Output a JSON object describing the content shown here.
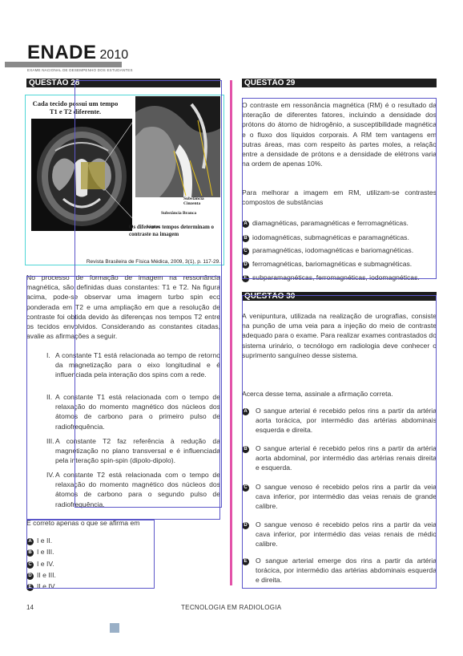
{
  "header": {
    "brand": "ENADE",
    "year": "2010",
    "subtitle": "EXAME NACIONAL DE DESEMPENHO DOS ESTUDANTES"
  },
  "q28": {
    "title": "QUESTÃO 28",
    "figure": {
      "caption_top": "Cada tecido possui um tempo T1 e T2 diferente.",
      "label_cinzenta": "Substância Cinzenta",
      "label_branca": "Substância Branca",
      "label_liquor": "Líquor",
      "caption_bottom": "Os diferentes tempos determinam o contraste na imagem",
      "source": "Revista Brasileira de Física Médica, 2009, 3(1), p. 117-29."
    },
    "intro": "No processo de formação de imagem na ressonância magnética, são definidas duas constantes: T1 e T2. Na figura acima, pode-se observar uma imagem turbo spin eco ponderada em T2 e uma ampliação em que a resolução de contraste foi obtida devido às diferenças nos tempos T2 entre os tecidos envolvidos. Considerando as constantes citadas, avalie as afirmações a seguir.",
    "items": [
      {
        "num": "I.",
        "text": "A constante T1 está relacionada ao tempo de retorno da magnetização para o eixo longitudinal e é influenciada pela interação dos spins com a rede."
      },
      {
        "num": "II.",
        "text": "A constante T1 está relacionada com o tempo de relaxação do momento magnético dos núcleos dos átomos de carbono para o primeiro pulso de radiofrequência."
      },
      {
        "num": "III.",
        "text": "A constante T2 faz referência à redução da magnetização no plano transversal e é influenciada pela interação spin-spin (dipolo-dipolo)."
      },
      {
        "num": "IV.",
        "text": "A constante T2 está relacionada com o tempo de relaxação do momento magnético dos núcleos dos átomos de carbono para o segundo pulso de radiofrequência."
      }
    ],
    "question": "É correto apenas o que se afirma em",
    "options": [
      {
        "letter": "A",
        "text": "I e II."
      },
      {
        "letter": "B",
        "text": "I e III."
      },
      {
        "letter": "C",
        "text": "I e IV."
      },
      {
        "letter": "D",
        "text": "II e III."
      },
      {
        "letter": "E",
        "text": "II e IV."
      }
    ]
  },
  "q29": {
    "title": "QUESTÃO 29",
    "intro": "O contraste em ressonância magnética (RM) é o resultado da interação de diferentes fatores, incluindo a densidade dos prótons do átomo de hidrogênio, a susceptibilidade magnética e o fluxo dos líquidos corporais. A RM tem vantagens em outras áreas, mas com respeito às partes moles, a relação entre a densidade de prótons e a densidade de elétrons varia na ordem de apenas 10%.",
    "question": "Para melhorar a imagem em RM, utilizam-se contrastes compostos de substâncias",
    "options": [
      {
        "letter": "A",
        "text": "diamagnéticas, paramagnéticas e ferromagnéticas."
      },
      {
        "letter": "B",
        "text": "iodomagnéticas, submagnéticas e paramagnéticas."
      },
      {
        "letter": "C",
        "text": "paramagnéticas, iodomagnéticas e bariomagnéticas."
      },
      {
        "letter": "D",
        "text": "ferromagnéticas, bariomagnéticas e submagnéticas."
      },
      {
        "letter": "E",
        "text": "subparamagnéticas, ferromagnéticas, iodomagnéticas."
      }
    ]
  },
  "q30": {
    "title": "QUESTÃO 30",
    "intro": "A venipuntura, utilizada na realização de urografias, consiste na punção de uma veia para a injeção do meio de contraste adequado para o exame. Para realizar exames contrastados do sistema urinário, o tecnólogo em radiologia deve conhecer o suprimento sanguíneo desse sistema.",
    "question": "Acerca desse tema, assinale a afirmação correta.",
    "options": [
      {
        "letter": "A",
        "text": "O sangue arterial é recebido pelos rins a partir da artéria aorta torácica, por intermédio das artérias abdominais esquerda e direita."
      },
      {
        "letter": "B",
        "text": "O sangue arterial é recebido pelos rins a partir da artéria aorta abdominal, por intermédio das artérias renais direita e esquerda."
      },
      {
        "letter": "C",
        "text": "O sangue venoso é recebido pelos rins a partir da veia cava inferior, por intermédio das veias renais de grande calibre."
      },
      {
        "letter": "D",
        "text": "O sangue venoso é recebido pelos rins a partir da veia cava inferior, por intermédio das veias renais de médio calibre."
      },
      {
        "letter": "E",
        "text": "O sangue arterial emerge dos rins a partir da artéria torácica, por intermédio das artérias abdominais esquerda e direita."
      }
    ]
  },
  "footer": {
    "page": "14",
    "course": "TECNOLOGIA EM RADIOLOGIA"
  },
  "colors": {
    "annotation_blue": "#5b56c9",
    "annotation_cyan": "#4fd6d6",
    "annotation_pink": "#e040a0",
    "bar_dark": "#1e1e1e"
  }
}
